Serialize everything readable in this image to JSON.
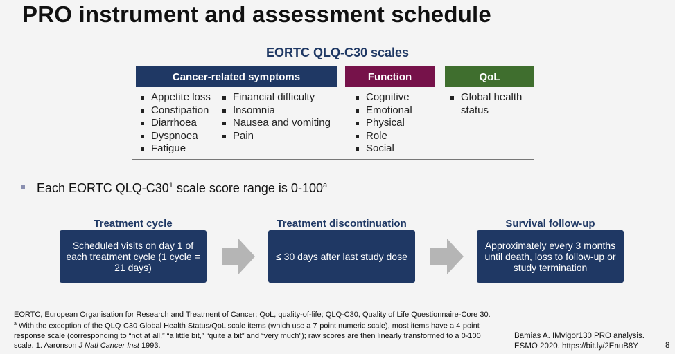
{
  "title": "PRO instrument and assessment schedule",
  "qlq_title": "EORTC QLQ-C30 scales",
  "categories": [
    {
      "label": "Cancer-related symptoms",
      "color": "#1f3864"
    },
    {
      "label": "Function",
      "color": "#76124a"
    },
    {
      "label": "QoL",
      "color": "#3f6e2e"
    }
  ],
  "symptoms_col1": [
    "Appetite loss",
    "Constipation",
    "Diarrhoea",
    "Dyspnoea",
    "Fatigue"
  ],
  "symptoms_col2": [
    "Financial difficulty",
    "Insomnia",
    "Nausea and vomiting",
    "Pain"
  ],
  "function_items": [
    "Cognitive",
    "Emotional",
    "Physical",
    "Role",
    "Social"
  ],
  "qol_items": [
    "Global health status"
  ],
  "range_text": {
    "prefix": "Each EORTC QLQ-C30",
    "sup": "1",
    "middle": " scale score range is 0-100",
    "sup2": "a"
  },
  "stages": [
    {
      "label": "Treatment cycle",
      "body": "Scheduled visits on day 1 of each treatment cycle (1 cycle = 21 days)"
    },
    {
      "label": "Treatment discontinuation",
      "body": "≤ 30 days after last study dose"
    },
    {
      "label": "Survival follow-up",
      "body": "Approximately every 3 months until death, loss to follow-up or study termination"
    }
  ],
  "footnote": {
    "part1": "EORTC, European Organisation for Research and Treatment of Cancer; QoL, quality-of-life; QLQ-C30, Quality of Life Questionnaire-Core 30. ",
    "sup": "a",
    "part2": " With the exception of the QLQ-C30 Global Health Status/QoL scale items (which use a 7-point numeric scale), most items have a 4-point response scale (corresponding to “not at all,” “a little bit,” “quite a bit” and “very much”); raw scores are then linearly transformed to a 0-100 scale. 1. Aaronson ",
    "journal": "J Natl Cancer Inst",
    "part3": " 1993."
  },
  "citation": "Bamias A. IMvigor130 PRO analysis. ESMO 2020. https://bit.ly/2EnuB8Y",
  "page_number": "8"
}
